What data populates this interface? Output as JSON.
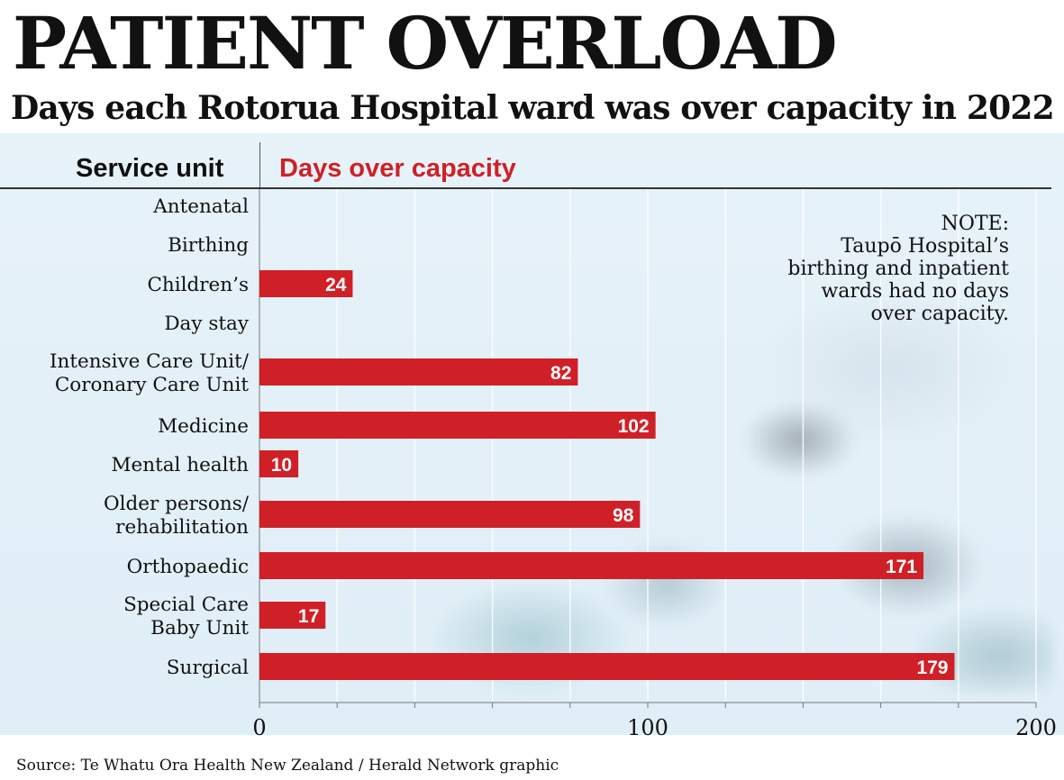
{
  "title": "PATIENT OVERLOAD",
  "subtitle": "Days each Rotorua Hospital ward was over capacity in 2022",
  "source": "Source: Te Whatu Ora Health New Zealand / Herald Network graphic",
  "note": {
    "lines": [
      "NOTE:",
      "Taupō Hospital’s",
      "birthing and inpatient",
      "wards had no days",
      "over capacity."
    ]
  },
  "colors": {
    "bar": "#d02027",
    "accent_text": "#d02027",
    "panel": "#e3f0f8"
  },
  "chart_data": {
    "type": "bar",
    "orientation": "horizontal",
    "column_headers": {
      "category": "Service unit",
      "value": "Days over capacity"
    },
    "categories": [
      [
        "Antenatal"
      ],
      [
        "Birthing"
      ],
      [
        "Children’s"
      ],
      [
        "Day stay"
      ],
      [
        "Intensive Care Unit/",
        "Coronary Care Unit"
      ],
      [
        "Medicine"
      ],
      [
        "Mental health"
      ],
      [
        "Older persons/",
        "rehabilitation"
      ],
      [
        "Orthopaedic"
      ],
      [
        "Special Care",
        "Baby Unit"
      ],
      [
        "Surgical"
      ]
    ],
    "values": [
      0,
      0,
      24,
      0,
      82,
      102,
      10,
      98,
      171,
      17,
      179
    ],
    "xlim": [
      0,
      200
    ],
    "x_ticks": [
      0,
      100,
      200
    ],
    "grid": true,
    "grid_step": 20,
    "data_labels": true
  }
}
